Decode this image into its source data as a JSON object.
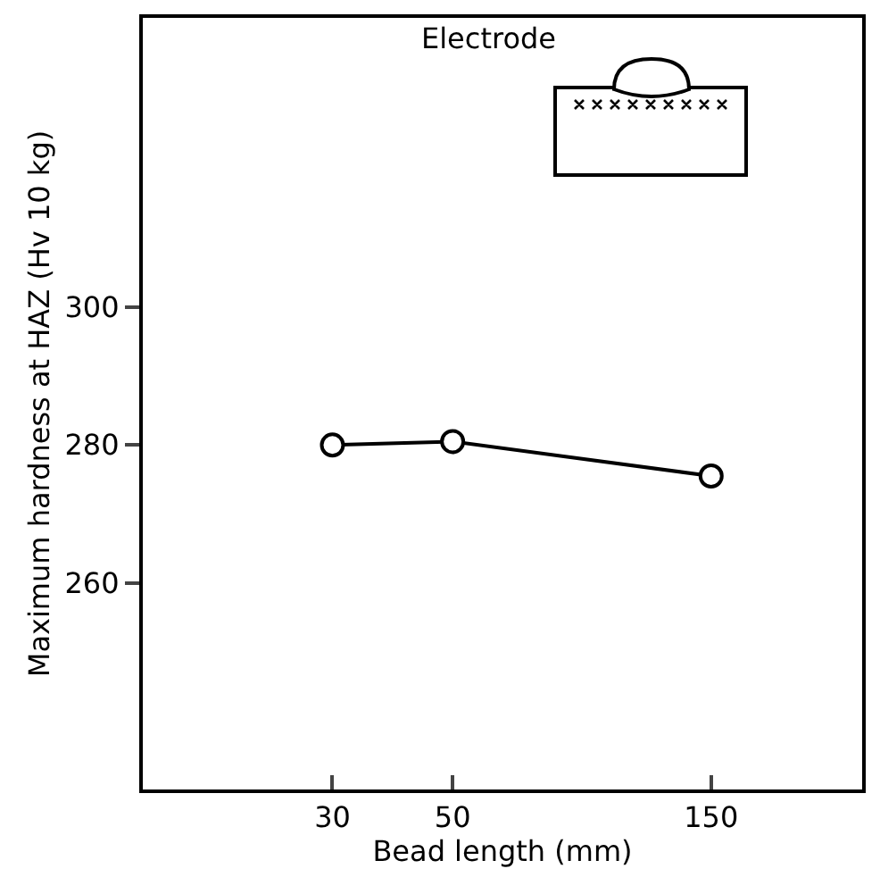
{
  "chart_data": {
    "type": "line",
    "xlabel": "Bead length (mm)",
    "ylabel": "Maximum hardness at HAZ (Hv 10 kg)",
    "annotations": [
      "Electrode"
    ],
    "x": [
      30,
      50,
      150
    ],
    "series": [
      {
        "color": "#000000",
        "values": [
          280,
          280.5,
          275.5
        ]
      }
    ],
    "log": "x",
    "xlim": [
      13.4,
      285
    ],
    "xticks": [
      30,
      50,
      150
    ],
    "ylim": [
      230,
      342
    ],
    "yticks": [
      260,
      280,
      300
    ],
    "grid": false,
    "marker": "circle",
    "line_style": "solid"
  }
}
